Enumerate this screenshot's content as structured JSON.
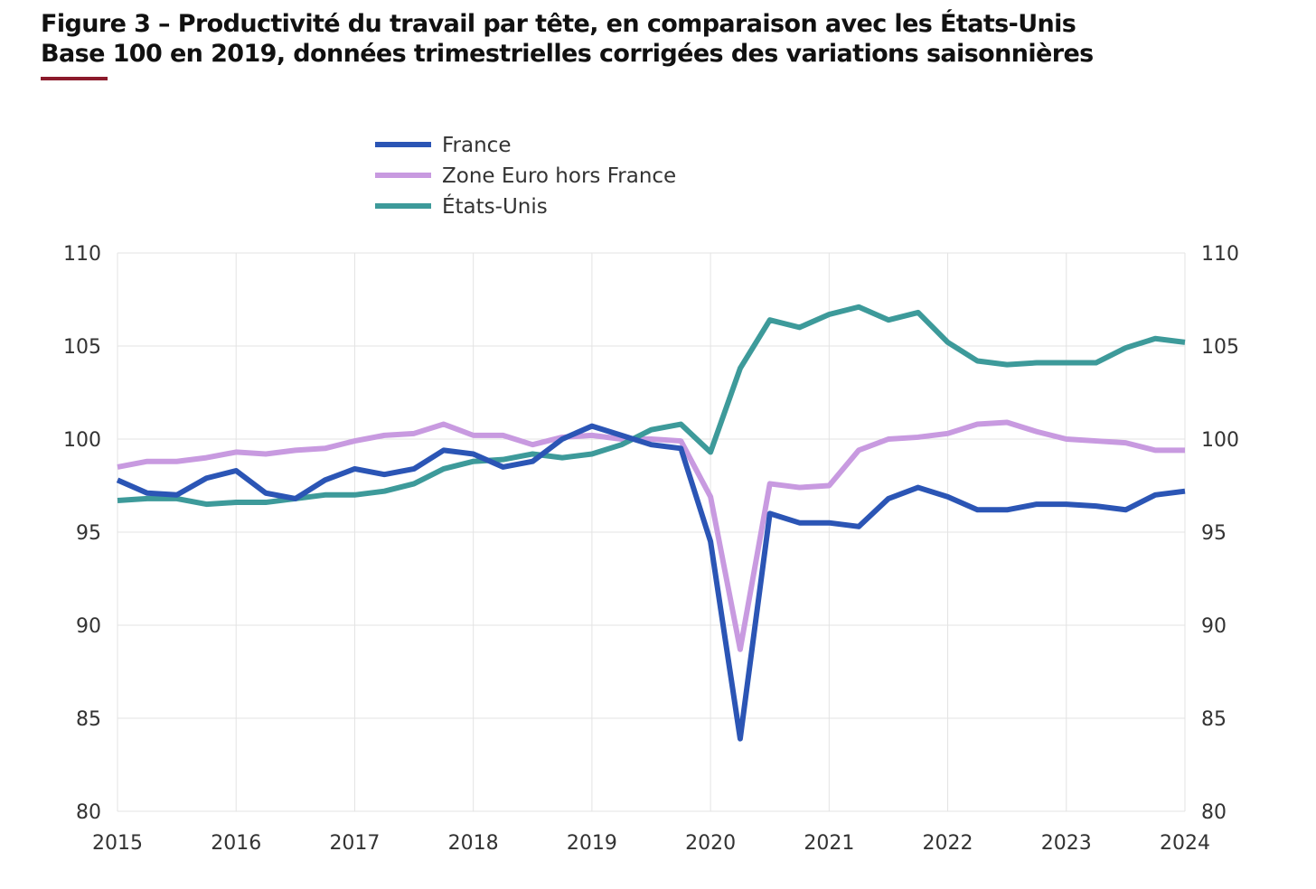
{
  "figure": {
    "title": "Figure 3 – Productivité du travail par tête, en comparaison avec les États-Unis",
    "subtitle": "Base 100 en 2019, données trimestrielles corrigées des variations saisonnières",
    "rule_color": "#8b1a2b"
  },
  "chart_data": {
    "type": "line",
    "xlim": [
      2015,
      2024
    ],
    "ylim": [
      80,
      110
    ],
    "x_ticks": [
      2015,
      2016,
      2017,
      2018,
      2019,
      2020,
      2021,
      2022,
      2023,
      2024
    ],
    "x_tick_labels": [
      "2015",
      "2016",
      "2017",
      "2018",
      "2019",
      "2020",
      "2021",
      "2022",
      "2023",
      "2024"
    ],
    "y_ticks": [
      80,
      85,
      90,
      95,
      100,
      105,
      110
    ],
    "y_tick_labels": [
      "80",
      "85",
      "90",
      "95",
      "100",
      "105",
      "110"
    ],
    "y_axis_both_sides": true,
    "grid": true,
    "legend_position": "top-left",
    "x": [
      2015,
      2015.25,
      2015.5,
      2015.75,
      2016,
      2016.25,
      2016.5,
      2016.75,
      2017,
      2017.25,
      2017.5,
      2017.75,
      2018,
      2018.25,
      2018.5,
      2018.75,
      2019,
      2019.25,
      2019.5,
      2019.75,
      2020,
      2020.25,
      2020.5,
      2020.75,
      2021,
      2021.25,
      2021.5,
      2021.75,
      2022,
      2022.25,
      2022.5,
      2022.75,
      2023,
      2023.25,
      2023.5,
      2023.75,
      2024
    ],
    "series": [
      {
        "name": "France",
        "color": "#2b55b5",
        "values": [
          97.8,
          97.1,
          97.0,
          97.9,
          98.3,
          97.1,
          96.8,
          97.8,
          98.4,
          98.1,
          98.4,
          99.4,
          99.2,
          98.5,
          98.8,
          100.0,
          100.7,
          100.2,
          99.7,
          99.5,
          94.5,
          83.9,
          96.0,
          95.5,
          95.5,
          95.3,
          96.8,
          97.4,
          96.9,
          96.2,
          96.2,
          96.5,
          96.5,
          96.4,
          96.2,
          97.0,
          97.2
        ]
      },
      {
        "name": "Zone Euro hors France",
        "color": "#c89ae0",
        "values": [
          98.5,
          98.8,
          98.8,
          99.0,
          99.3,
          99.2,
          99.4,
          99.5,
          99.9,
          100.2,
          100.3,
          100.8,
          100.2,
          100.2,
          99.7,
          100.1,
          100.2,
          100.0,
          100.0,
          99.9,
          96.9,
          88.7,
          97.6,
          97.4,
          97.5,
          99.4,
          100.0,
          100.1,
          100.3,
          100.8,
          100.9,
          100.4,
          100.0,
          99.9,
          99.8,
          99.4,
          99.4
        ]
      },
      {
        "name": "États-Unis",
        "color": "#3d9a9a",
        "values": [
          96.7,
          96.8,
          96.8,
          96.5,
          96.6,
          96.6,
          96.8,
          97.0,
          97.0,
          97.2,
          97.6,
          98.4,
          98.8,
          98.9,
          99.2,
          99.0,
          99.2,
          99.7,
          100.5,
          100.8,
          99.3,
          103.8,
          106.4,
          106.0,
          106.7,
          107.1,
          106.4,
          106.8,
          105.2,
          104.2,
          104.0,
          104.1,
          104.1,
          104.1,
          104.9,
          105.4,
          105.2
        ]
      }
    ]
  }
}
